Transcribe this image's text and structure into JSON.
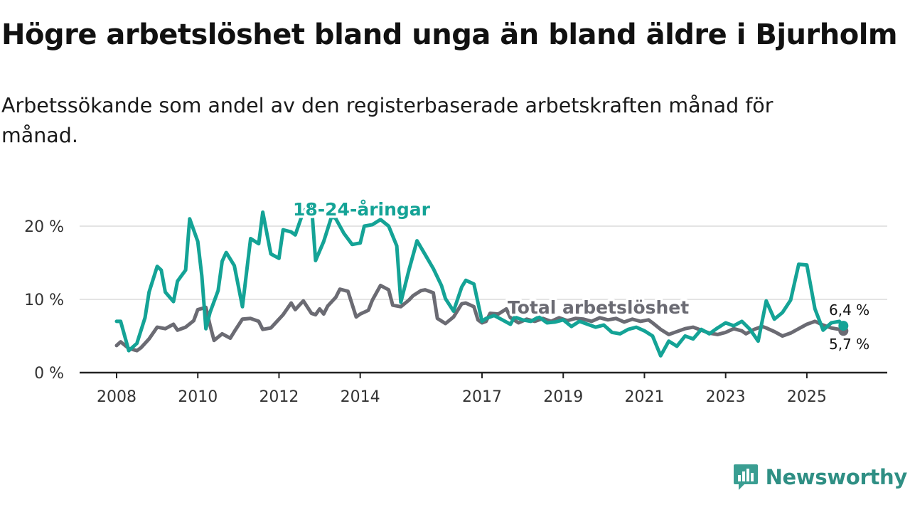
{
  "title": "Högre arbetslöshet bland unga än bland äldre i Bjurholm",
  "subtitle": "Arbetssökande som andel av den registerbaserade arbetskraften månad för månad.",
  "brand": {
    "name": "Newsworthy",
    "icon": "newsworthy-chart-icon",
    "color": "#3a9e92"
  },
  "colors": {
    "youth": "#14a396",
    "total": "#6b6b73",
    "grid": "#dcdcdc",
    "axis": "#222222"
  },
  "chart_data": {
    "type": "line",
    "title": "Högre arbetslöshet bland unga än bland äldre i Bjurholm",
    "xlabel": "",
    "ylabel": "",
    "xlim": [
      2008.0,
      2026.7
    ],
    "ylim": [
      0,
      20.5
    ],
    "y_ticks": [
      0,
      10,
      20
    ],
    "y_tick_labels": [
      "0 %",
      "10 %",
      "20 %"
    ],
    "x_ticks": [
      2008,
      2010,
      2012,
      2014,
      2017,
      2019,
      2021,
      2023,
      2025
    ],
    "x_tick_labels": [
      "2008",
      "2010",
      "2012",
      "2014",
      "2017",
      "2019",
      "2021",
      "2023",
      "2025"
    ],
    "series": [
      {
        "name": "Total arbetslöshet",
        "label": "Total arbetslöshet",
        "end_label": "5,7 %",
        "color": "#6b6b73",
        "x": [
          2008.0,
          2008.1,
          2008.3,
          2008.5,
          2008.6,
          2008.8,
          2009.0,
          2009.2,
          2009.4,
          2009.5,
          2009.7,
          2009.9,
          2010.0,
          2010.2,
          2010.3,
          2010.4,
          2010.6,
          2010.8,
          2010.9,
          2011.1,
          2011.3,
          2011.5,
          2011.6,
          2011.8,
          2011.9,
          2012.1,
          2012.3,
          2012.4,
          2012.6,
          2012.8,
          2012.9,
          2013.0,
          2013.1,
          2013.2,
          2013.4,
          2013.5,
          2013.7,
          2013.9,
          2014.0,
          2014.2,
          2014.3,
          2014.5,
          2014.7,
          2014.8,
          2015.0,
          2015.2,
          2015.3,
          2015.5,
          2015.6,
          2015.8,
          2015.9,
          2016.1,
          2016.3,
          2016.5,
          2016.6,
          2016.8,
          2016.9,
          2017.0,
          2017.1,
          2017.2,
          2017.4,
          2017.6,
          2017.7,
          2017.9,
          2018.1,
          2018.3,
          2018.5,
          2018.7,
          2018.9,
          2019.1,
          2019.3,
          2019.5,
          2019.7,
          2019.9,
          2020.1,
          2020.3,
          2020.5,
          2020.7,
          2020.9,
          2021.1,
          2021.2,
          2021.4,
          2021.6,
          2021.8,
          2022.0,
          2022.2,
          2022.4,
          2022.6,
          2022.8,
          2023.0,
          2023.2,
          2023.4,
          2023.5,
          2023.7,
          2023.9,
          2024.0,
          2024.2,
          2024.4,
          2024.6,
          2024.8,
          2025.0,
          2025.2,
          2025.4,
          2025.6,
          2025.8,
          2025.9
        ],
        "y": [
          3.7,
          4.2,
          3.3,
          3.0,
          3.4,
          4.6,
          6.2,
          6.0,
          6.6,
          5.8,
          6.2,
          7.1,
          8.6,
          8.9,
          6.5,
          4.4,
          5.3,
          4.7,
          5.6,
          7.3,
          7.4,
          7.0,
          5.9,
          6.1,
          6.7,
          7.9,
          9.5,
          8.6,
          9.8,
          8.1,
          7.9,
          8.7,
          8.0,
          9.1,
          10.3,
          11.4,
          11.1,
          7.6,
          8.0,
          8.5,
          9.9,
          11.9,
          11.3,
          9.2,
          9.0,
          9.9,
          10.5,
          11.2,
          11.3,
          10.9,
          7.4,
          6.7,
          7.6,
          9.4,
          9.5,
          9.0,
          7.2,
          6.8,
          7.0,
          8.1,
          8.0,
          8.7,
          7.5,
          6.8,
          7.3,
          7.0,
          7.4,
          7.0,
          7.5,
          7.1,
          7.4,
          7.3,
          7.0,
          7.5,
          7.2,
          7.4,
          6.9,
          7.3,
          7.0,
          7.2,
          6.8,
          5.9,
          5.2,
          5.6,
          6.0,
          6.2,
          5.8,
          5.4,
          5.2,
          5.5,
          6.0,
          5.7,
          5.3,
          5.9,
          6.3,
          6.1,
          5.6,
          5.0,
          5.4,
          6.0,
          6.6,
          7.0,
          6.5,
          6.1,
          5.9,
          5.7
        ]
      },
      {
        "name": "18-24-åringar",
        "label": "18-24-åringar",
        "end_label": "6,4 %",
        "color": "#14a396",
        "x": [
          2008.0,
          2008.1,
          2008.3,
          2008.5,
          2008.7,
          2008.8,
          2009.0,
          2009.1,
          2009.2,
          2009.4,
          2009.5,
          2009.7,
          2009.8,
          2010.0,
          2010.1,
          2010.2,
          2010.3,
          2010.5,
          2010.6,
          2010.7,
          2010.9,
          2011.1,
          2011.3,
          2011.5,
          2011.6,
          2011.8,
          2012.0,
          2012.1,
          2012.3,
          2012.4,
          2012.6,
          2012.8,
          2012.9,
          2013.1,
          2013.3,
          2013.4,
          2013.6,
          2013.8,
          2014.0,
          2014.1,
          2014.3,
          2014.5,
          2014.7,
          2014.9,
          2015.0,
          2015.2,
          2015.4,
          2015.6,
          2015.8,
          2016.0,
          2016.1,
          2016.3,
          2016.5,
          2016.6,
          2016.8,
          2017.0,
          2017.1,
          2017.3,
          2017.5,
          2017.7,
          2017.8,
          2018.0,
          2018.2,
          2018.4,
          2018.6,
          2018.8,
          2019.0,
          2019.2,
          2019.4,
          2019.6,
          2019.8,
          2020.0,
          2020.2,
          2020.4,
          2020.6,
          2020.8,
          2021.0,
          2021.2,
          2021.4,
          2021.6,
          2021.8,
          2022.0,
          2022.2,
          2022.4,
          2022.6,
          2022.8,
          2023.0,
          2023.2,
          2023.4,
          2023.6,
          2023.8,
          2024.0,
          2024.2,
          2024.4,
          2024.6,
          2024.8,
          2025.0,
          2025.2,
          2025.4,
          2025.6,
          2025.8,
          2025.9
        ],
        "y": [
          7.0,
          7.0,
          3.0,
          4.0,
          7.5,
          11.0,
          14.5,
          14.0,
          11.0,
          9.7,
          12.5,
          14.0,
          21.0,
          17.9,
          13.2,
          6.0,
          8.2,
          11.2,
          15.2,
          16.4,
          14.6,
          9.0,
          18.3,
          17.6,
          21.9,
          16.2,
          15.6,
          19.5,
          19.2,
          18.8,
          22.0,
          23.0,
          15.3,
          17.9,
          21.4,
          21.0,
          19.0,
          17.5,
          17.7,
          20.0,
          20.2,
          20.9,
          20.0,
          17.3,
          9.6,
          14.0,
          18.0,
          16.1,
          14.2,
          11.9,
          10.1,
          8.4,
          11.7,
          12.6,
          12.1,
          7.0,
          7.4,
          7.8,
          7.2,
          6.6,
          7.6,
          7.2,
          7.0,
          7.6,
          6.8,
          6.9,
          7.2,
          6.3,
          7.0,
          6.6,
          6.2,
          6.5,
          5.5,
          5.3,
          5.9,
          6.2,
          5.7,
          5.0,
          2.3,
          4.3,
          3.6,
          5.0,
          4.6,
          5.9,
          5.3,
          6.1,
          6.8,
          6.4,
          7.0,
          5.9,
          4.3,
          9.8,
          7.3,
          8.2,
          9.9,
          14.8,
          14.7,
          8.7,
          5.8,
          6.8,
          7.0,
          6.4
        ]
      }
    ],
    "grid": true,
    "legend": "inline-labels"
  }
}
